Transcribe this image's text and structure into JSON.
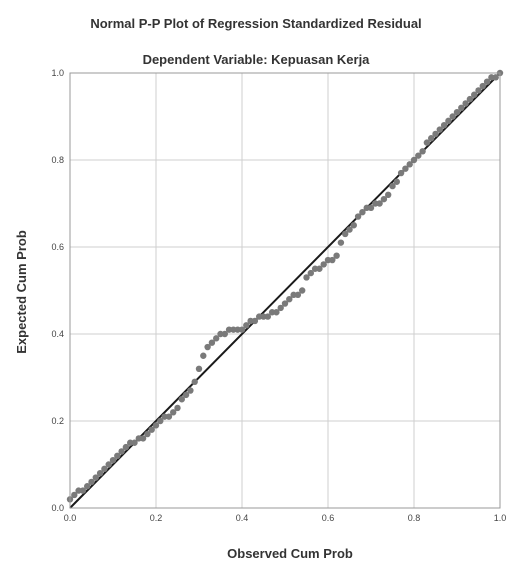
{
  "chart_data": {
    "type": "scatter",
    "title": "Normal P-P Plot of Regression Standardized Residual",
    "subtitle": "Dependent Variable: Kepuasan Kerja",
    "xlabel": "Observed Cum Prob",
    "ylabel": "Expected Cum Prob",
    "xlim": [
      0,
      1
    ],
    "ylim": [
      0,
      1
    ],
    "xticks": [
      "0.0",
      "0.2",
      "0.4",
      "0.6",
      "0.8",
      "1.0"
    ],
    "yticks": [
      "0.0",
      "0.2",
      "0.4",
      "0.6",
      "0.8",
      "1.0"
    ],
    "grid": true,
    "reference_line": [
      [
        0,
        0
      ],
      [
        1,
        1
      ]
    ],
    "colors": {
      "points": "#7a7a7a",
      "line": "#1a1a1a",
      "grid": "#cfcfcf",
      "frame": "#999999"
    },
    "points": [
      [
        0.0,
        0.02
      ],
      [
        0.01,
        0.03
      ],
      [
        0.02,
        0.04
      ],
      [
        0.03,
        0.04
      ],
      [
        0.04,
        0.05
      ],
      [
        0.05,
        0.06
      ],
      [
        0.06,
        0.07
      ],
      [
        0.07,
        0.08
      ],
      [
        0.08,
        0.09
      ],
      [
        0.09,
        0.1
      ],
      [
        0.1,
        0.11
      ],
      [
        0.11,
        0.12
      ],
      [
        0.12,
        0.13
      ],
      [
        0.13,
        0.14
      ],
      [
        0.14,
        0.15
      ],
      [
        0.15,
        0.15
      ],
      [
        0.16,
        0.16
      ],
      [
        0.17,
        0.16
      ],
      [
        0.18,
        0.17
      ],
      [
        0.19,
        0.18
      ],
      [
        0.2,
        0.19
      ],
      [
        0.21,
        0.2
      ],
      [
        0.22,
        0.21
      ],
      [
        0.23,
        0.21
      ],
      [
        0.24,
        0.22
      ],
      [
        0.25,
        0.23
      ],
      [
        0.26,
        0.25
      ],
      [
        0.27,
        0.26
      ],
      [
        0.28,
        0.27
      ],
      [
        0.29,
        0.29
      ],
      [
        0.3,
        0.32
      ],
      [
        0.31,
        0.35
      ],
      [
        0.32,
        0.37
      ],
      [
        0.33,
        0.38
      ],
      [
        0.34,
        0.39
      ],
      [
        0.35,
        0.4
      ],
      [
        0.36,
        0.4
      ],
      [
        0.37,
        0.41
      ],
      [
        0.38,
        0.41
      ],
      [
        0.39,
        0.41
      ],
      [
        0.4,
        0.41
      ],
      [
        0.41,
        0.42
      ],
      [
        0.42,
        0.43
      ],
      [
        0.43,
        0.43
      ],
      [
        0.44,
        0.44
      ],
      [
        0.45,
        0.44
      ],
      [
        0.46,
        0.44
      ],
      [
        0.47,
        0.45
      ],
      [
        0.48,
        0.45
      ],
      [
        0.49,
        0.46
      ],
      [
        0.5,
        0.47
      ],
      [
        0.51,
        0.48
      ],
      [
        0.52,
        0.49
      ],
      [
        0.53,
        0.49
      ],
      [
        0.54,
        0.5
      ],
      [
        0.55,
        0.53
      ],
      [
        0.56,
        0.54
      ],
      [
        0.57,
        0.55
      ],
      [
        0.58,
        0.55
      ],
      [
        0.59,
        0.56
      ],
      [
        0.6,
        0.57
      ],
      [
        0.61,
        0.57
      ],
      [
        0.62,
        0.58
      ],
      [
        0.63,
        0.61
      ],
      [
        0.64,
        0.63
      ],
      [
        0.65,
        0.64
      ],
      [
        0.66,
        0.65
      ],
      [
        0.67,
        0.67
      ],
      [
        0.68,
        0.68
      ],
      [
        0.69,
        0.69
      ],
      [
        0.7,
        0.69
      ],
      [
        0.71,
        0.7
      ],
      [
        0.72,
        0.7
      ],
      [
        0.73,
        0.71
      ],
      [
        0.74,
        0.72
      ],
      [
        0.75,
        0.74
      ],
      [
        0.76,
        0.75
      ],
      [
        0.77,
        0.77
      ],
      [
        0.78,
        0.78
      ],
      [
        0.79,
        0.79
      ],
      [
        0.8,
        0.8
      ],
      [
        0.81,
        0.81
      ],
      [
        0.82,
        0.82
      ],
      [
        0.83,
        0.84
      ],
      [
        0.84,
        0.85
      ],
      [
        0.85,
        0.86
      ],
      [
        0.86,
        0.87
      ],
      [
        0.87,
        0.88
      ],
      [
        0.88,
        0.89
      ],
      [
        0.89,
        0.9
      ],
      [
        0.9,
        0.91
      ],
      [
        0.91,
        0.92
      ],
      [
        0.92,
        0.93
      ],
      [
        0.93,
        0.94
      ],
      [
        0.94,
        0.95
      ],
      [
        0.95,
        0.96
      ],
      [
        0.96,
        0.97
      ],
      [
        0.97,
        0.98
      ],
      [
        0.98,
        0.99
      ],
      [
        0.99,
        0.99
      ],
      [
        1.0,
        1.0
      ]
    ]
  }
}
